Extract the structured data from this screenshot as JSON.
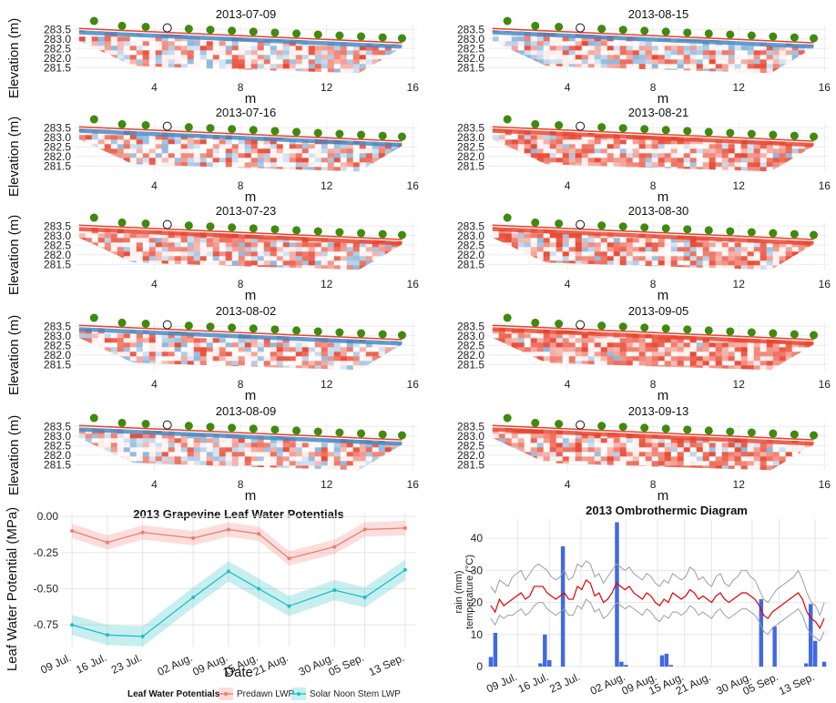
{
  "ert_panels": {
    "elev_ticks": [
      "283.5",
      "283.0",
      "282.5",
      "282.0",
      "281.5"
    ],
    "x_ticks": [
      "4",
      "8",
      "12",
      "16"
    ],
    "xlabel": "m",
    "ylabel": "Elevation (m)",
    "colors": {
      "dry": "#e8412b",
      "wet": "#3d86c6",
      "mid": "#ffffff",
      "electrode": "#3f8a0f"
    },
    "dates": [
      "2013-07-09",
      "2013-07-16",
      "2013-07-23",
      "2013-08-02",
      "2013-08-09",
      "2013-08-15",
      "2013-08-21",
      "2013-08-30",
      "2013-09-05",
      "2013-09-13"
    ],
    "dry_level": [
      0.45,
      0.55,
      0.7,
      0.5,
      0.45,
      0.55,
      0.8,
      0.7,
      0.9,
      0.75
    ]
  },
  "chart_data": [
    {
      "type": "line",
      "title": "2013 Grapevine Leaf Water Potentials",
      "xlabel": "Date",
      "ylabel": "Leaf Water Potential (MPa)",
      "categories": [
        "09 Jul.",
        "16 Jul.",
        "23 Jul.",
        "02 Aug.",
        "09 Aug.",
        "15 Aug.",
        "21 Aug.",
        "30 Aug.",
        "05 Sep.",
        "13 Sep."
      ],
      "x_days": [
        0,
        7,
        14,
        24,
        31,
        37,
        43,
        52,
        58,
        66
      ],
      "ylim": [
        -0.9,
        0.02
      ],
      "y_ticks": [
        "0.00",
        "-0.25",
        "-0.50",
        "-0.75"
      ],
      "legend_title": "Leaf Water Potentials",
      "legend_position": "bottom",
      "series": [
        {
          "name": "Predawn LWP",
          "color": "#f07b72",
          "values": [
            -0.1,
            -0.18,
            -0.11,
            -0.15,
            -0.09,
            -0.12,
            -0.29,
            -0.21,
            -0.09,
            -0.08
          ],
          "band": [
            0.05,
            0.05,
            0.05,
            0.05,
            0.05,
            0.05,
            0.05,
            0.05,
            0.05,
            0.05
          ]
        },
        {
          "name": "Solar Noon Stem LWP",
          "color": "#1fbfc4",
          "values": [
            -0.75,
            -0.82,
            -0.83,
            -0.56,
            -0.38,
            -0.5,
            -0.62,
            -0.51,
            -0.56,
            -0.37
          ],
          "band": [
            0.07,
            0.07,
            0.07,
            0.07,
            0.07,
            0.07,
            0.07,
            0.07,
            0.07,
            0.07
          ]
        }
      ]
    },
    {
      "type": "bar+line",
      "title": "2013 Ombrothermic Diagram",
      "ylabel_top": "rain (mm)",
      "ylabel_bottom": "temperature (°C)",
      "ylim": [
        0,
        46
      ],
      "y_ticks": [
        "0",
        "10",
        "20",
        "30",
        "40"
      ],
      "x_ticks": [
        "09 Jul.",
        "16 Jul.",
        "23 Jul.",
        "02 Aug.",
        "09 Aug.",
        "15 Aug.",
        "21 Aug.",
        "30 Aug.",
        "05 Sep.",
        "13 Sep."
      ],
      "x_tick_days": [
        7,
        14,
        21,
        31,
        38,
        44,
        50,
        59,
        65,
        73
      ],
      "day_range": [
        0,
        76
      ],
      "rain": {
        "color": "#4169e1",
        "days": [
          1,
          2,
          12,
          13,
          14,
          17,
          29,
          30,
          31,
          39,
          40,
          41,
          61,
          64,
          71,
          72,
          73,
          75
        ],
        "values": [
          3,
          10.5,
          1,
          10,
          2,
          37.5,
          45,
          1.5,
          0.5,
          3.5,
          4,
          0.5,
          21,
          12.5,
          1,
          19.5,
          8,
          1.5
        ]
      },
      "temp_mean": {
        "color": "#e00000",
        "values": [
          19,
          17,
          21,
          19,
          20,
          21,
          22,
          23,
          21,
          22,
          25,
          25,
          25,
          23,
          22,
          21,
          22,
          23,
          21,
          21,
          25,
          24,
          27,
          26,
          22,
          23,
          20,
          21,
          23,
          26,
          25,
          24,
          25,
          23,
          22,
          21,
          23,
          22,
          20,
          19,
          21,
          20,
          23,
          22,
          21,
          22,
          24,
          23,
          21,
          22,
          21,
          20,
          22,
          23,
          21,
          20,
          21,
          22,
          23,
          23,
          22,
          21,
          19,
          16,
          15,
          17,
          18,
          19,
          20,
          21,
          22,
          23,
          21,
          17,
          15,
          14,
          12,
          15
        ]
      },
      "temp_max": {
        "color": "#9e9e9e",
        "values": [
          25,
          23,
          27,
          26,
          25,
          28,
          29,
          30,
          27,
          29,
          31,
          32,
          31,
          30,
          28,
          27,
          28,
          30,
          27,
          28,
          32,
          31,
          33,
          32,
          28,
          29,
          26,
          28,
          30,
          32,
          31,
          30,
          31,
          29,
          28,
          27,
          29,
          28,
          26,
          25,
          27,
          26,
          29,
          28,
          27,
          28,
          31,
          30,
          27,
          28,
          26,
          25,
          28,
          29,
          26,
          25,
          27,
          28,
          30,
          30,
          28,
          27,
          24,
          21,
          20,
          22,
          24,
          25,
          26,
          27,
          28,
          30,
          27,
          23,
          20,
          19,
          16,
          20
        ]
      },
      "temp_min": {
        "color": "#9e9e9e",
        "values": [
          15,
          13,
          16,
          15,
          16,
          16,
          17,
          18,
          16,
          17,
          19,
          20,
          20,
          18,
          17,
          16,
          17,
          18,
          16,
          16,
          19,
          18,
          21,
          20,
          17,
          18,
          15,
          16,
          18,
          20,
          19,
          18,
          19,
          18,
          17,
          16,
          18,
          17,
          15,
          14,
          16,
          15,
          17,
          17,
          16,
          17,
          19,
          18,
          16,
          17,
          16,
          15,
          17,
          18,
          16,
          15,
          16,
          17,
          18,
          18,
          17,
          16,
          14,
          11,
          10,
          12,
          13,
          14,
          15,
          16,
          17,
          18,
          16,
          12,
          10,
          9,
          8,
          11
        ]
      }
    }
  ]
}
